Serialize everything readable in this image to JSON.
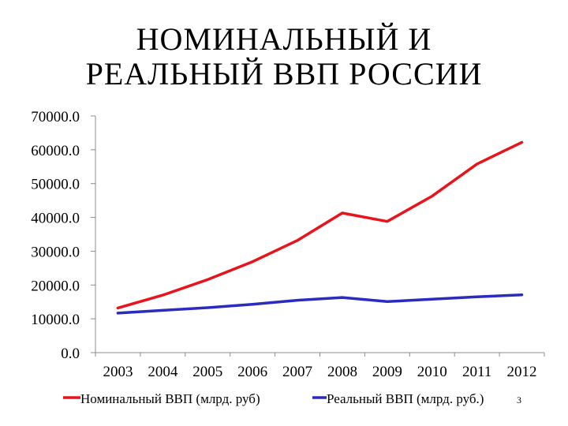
{
  "title_line1": "НОМИНАЛЬНЫЙ И",
  "title_line2": "РЕАЛЬНЫЙ ВВП РОССИИ",
  "page_number": "3",
  "chart_data": {
    "type": "line",
    "title": "НОМИНАЛЬНЫЙ И РЕАЛЬНЫЙ ВВП РОССИИ",
    "xlabel": "",
    "ylabel": "",
    "categories": [
      "2003",
      "2004",
      "2005",
      "2006",
      "2007",
      "2008",
      "2009",
      "2010",
      "2011",
      "2012"
    ],
    "ylim": [
      0,
      70000
    ],
    "yticks": [
      "0.0",
      "10000.0",
      "20000.0",
      "30000.0",
      "40000.0",
      "50000.0",
      "60000.0",
      "70000.0"
    ],
    "grid": false,
    "legend_position": "bottom",
    "series": [
      {
        "name": "Номинальный ВВП (млрд. руб)",
        "color": "#e8131b",
        "values": [
          13200,
          17000,
          21600,
          26900,
          33200,
          41300,
          38800,
          46300,
          55800,
          62200
        ]
      },
      {
        "name": "Реальный ВВП (млрд. руб.)",
        "color": "#2b2bbf",
        "values": [
          11700,
          12500,
          13300,
          14300,
          15500,
          16300,
          15100,
          15800,
          16500,
          17100
        ]
      }
    ]
  }
}
